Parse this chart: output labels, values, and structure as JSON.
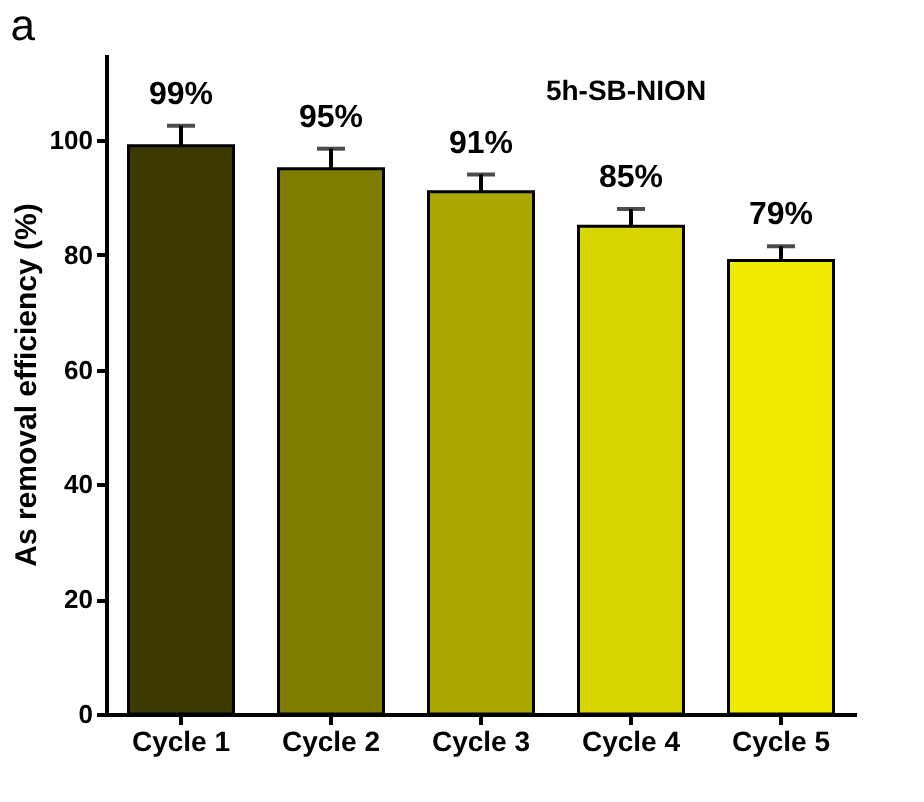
{
  "chart_data": {
    "type": "bar",
    "title": "a",
    "ylabel": "As removal efficiency (%)",
    "annotations": [
      "5h-SB-NION"
    ],
    "categories": [
      "Cycle 1",
      "Cycle 2",
      "Cycle 3",
      "Cycle 4",
      "Cycle 5"
    ],
    "values": [
      99,
      95,
      91,
      85,
      79
    ],
    "value_labels": [
      "99%",
      "95%",
      "91%",
      "85%",
      "79%"
    ],
    "errors": [
      3.5,
      3.5,
      3,
      3,
      2.5
    ],
    "colors": [
      "#3d3a00",
      "#7f7c00",
      "#aaa800",
      "#d8d600",
      "#eeea00"
    ],
    "ylim": [
      0,
      115
    ],
    "yticks": [
      0,
      20,
      40,
      60,
      80,
      100
    ],
    "grid": false
  }
}
